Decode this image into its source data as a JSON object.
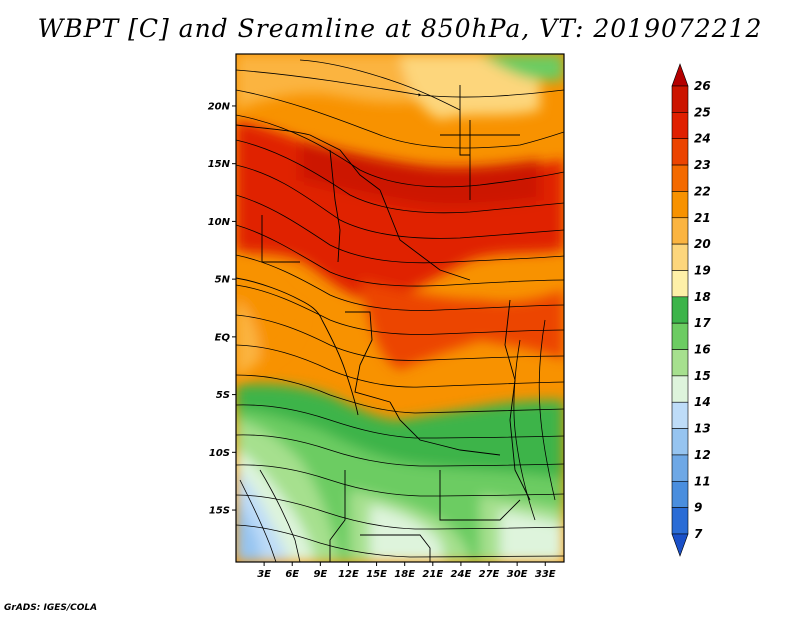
{
  "title": "WBPT [C] and Sreamline at 850hPa, VT: 2019072212",
  "credit": "GrADS: IGES/COLA",
  "lat_labels": [
    "20N",
    "15N",
    "10N",
    "5N",
    "EQ",
    "5S",
    "10S",
    "15S"
  ],
  "lat_values": [
    20,
    15,
    10,
    5,
    0,
    -5,
    -10,
    -15
  ],
  "lon_labels": [
    "3E",
    "6E",
    "9E",
    "12E",
    "15E",
    "18E",
    "21E",
    "24E",
    "27E",
    "30E",
    "33E"
  ],
  "lon_values": [
    3,
    6,
    9,
    12,
    15,
    18,
    21,
    24,
    27,
    30,
    33
  ],
  "map_extent": {
    "lon": [
      0,
      35
    ],
    "lat": [
      -19.5,
      24.5
    ]
  },
  "colorbar": {
    "labels": [
      "26",
      "25",
      "24",
      "23",
      "22",
      "21",
      "20",
      "19",
      "18",
      "17",
      "16",
      "15",
      "14",
      "13",
      "12",
      "11",
      "9",
      "7"
    ],
    "colors": [
      "#b40000",
      "#cc1500",
      "#e02000",
      "#ec4400",
      "#f46a00",
      "#f89200",
      "#fbb440",
      "#fdd67c",
      "#fef0a8",
      "#3cb44a",
      "#6ccc62",
      "#a6e08e",
      "#def4dc",
      "#bedcf8",
      "#96c4f0",
      "#6ea8e6",
      "#4a8ede",
      "#2a6cd6",
      "#1a50c8"
    ]
  },
  "fields": {
    "wbpt_regions": [
      {
        "band": "20-21",
        "color": "#f89200"
      },
      {
        "band": "23-25",
        "color": "#e02000"
      },
      {
        "band": "15-17",
        "color": "#6ccc62"
      },
      {
        "band": "11-14",
        "color": "#96c4f0"
      }
    ],
    "streamlines": "present"
  }
}
